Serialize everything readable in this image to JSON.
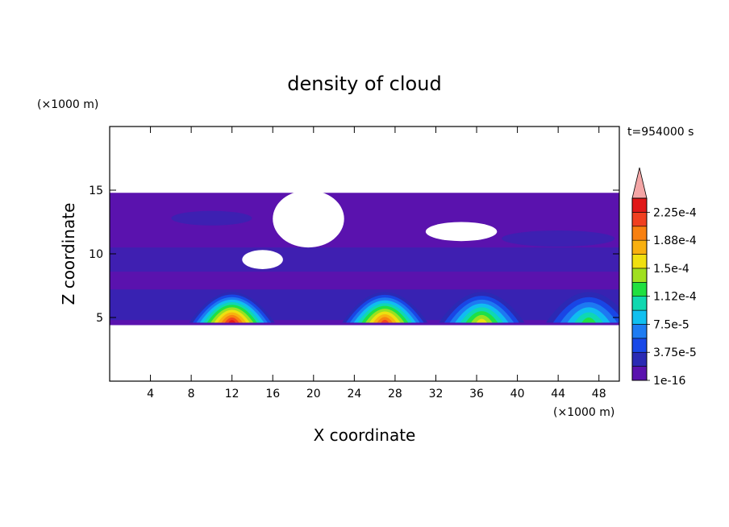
{
  "chart_data": {
    "type": "heatmap",
    "title": "density of cloud",
    "xlabel": "X coordinate",
    "ylabel": "Z coordinate",
    "x_unit": "(×1000 m)",
    "y_unit": "(×1000 m)",
    "time_label": "t=954000 s",
    "xlim": [
      0,
      50
    ],
    "ylim": [
      0,
      20
    ],
    "x_ticks": [
      4,
      8,
      12,
      16,
      20,
      24,
      28,
      32,
      36,
      40,
      44,
      48
    ],
    "y_ticks": [
      5,
      10,
      15
    ],
    "colorbar": {
      "levels": [
        "1e-16",
        "3.75e-5",
        "7.5e-5",
        "1.12e-4",
        "1.5e-4",
        "1.88e-4",
        "2.25e-4"
      ],
      "colors": [
        "#5a12ae",
        "#2a2ab4",
        "#1848e8",
        "#1e7cf2",
        "#10c0f0",
        "#10d8b0",
        "#20e040",
        "#a0e020",
        "#f0e010",
        "#f8b010",
        "#f88010",
        "#f04020",
        "#e01818"
      ],
      "extend_color": "#f4a6a6",
      "extend": "max"
    },
    "cloud_layer": {
      "z_bottom": 4.4,
      "z_top": 14.8
    },
    "convective_cells": [
      {
        "x_center": 12,
        "peak": 0.000205
      },
      {
        "x_center": 27,
        "peak": 0.00019
      },
      {
        "x_center": 36.5,
        "peak": 0.00013
      },
      {
        "x_center": 47,
        "peak": 0.0001
      }
    ],
    "clear_regions": [
      {
        "x": [
          16,
          23
        ],
        "z": [
          10.5,
          15
        ]
      },
      {
        "x": [
          31,
          38
        ],
        "z": [
          11,
          12.5
        ]
      },
      {
        "x": [
          13,
          17
        ],
        "z": [
          8.8,
          10.3
        ]
      }
    ]
  }
}
